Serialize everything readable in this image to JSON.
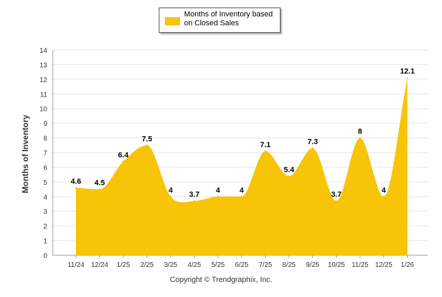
{
  "chart_data": {
    "type": "area",
    "categories": [
      "11/24",
      "12/24",
      "1/25",
      "2/25",
      "3/25",
      "4/25",
      "5/25",
      "6/25",
      "7/25",
      "8/25",
      "9/25",
      "10/25",
      "11/25",
      "12/25",
      "1/26"
    ],
    "series": [
      {
        "name": "Months of Inventory based on Closed Sales",
        "values": [
          4.6,
          4.5,
          6.4,
          7.5,
          4,
          3.7,
          4,
          4,
          7.1,
          5.4,
          7.3,
          3.7,
          8,
          4,
          12.1
        ],
        "color": "#F7C407"
      }
    ],
    "ylabel": "Months of Inventory",
    "xlabel": "",
    "ylim": [
      0,
      14
    ],
    "yticks": [
      0,
      1,
      2,
      3,
      4,
      5,
      6,
      7,
      8,
      9,
      10,
      11,
      12,
      13,
      14
    ],
    "grid": true,
    "legend": "top-center",
    "data_labels": [
      "4.6",
      "4.5",
      "6.4",
      "7.5",
      "4",
      "3.7",
      "4",
      "4",
      "7.1",
      "5.4",
      "7.3",
      "3.7",
      "8",
      "4",
      "12.1"
    ]
  },
  "legend": {
    "label_line1": "Months of Inventory based",
    "label_line2": "on Closed Sales"
  },
  "footer": {
    "copyright": "Copyright © Trendgraphix, Inc."
  }
}
